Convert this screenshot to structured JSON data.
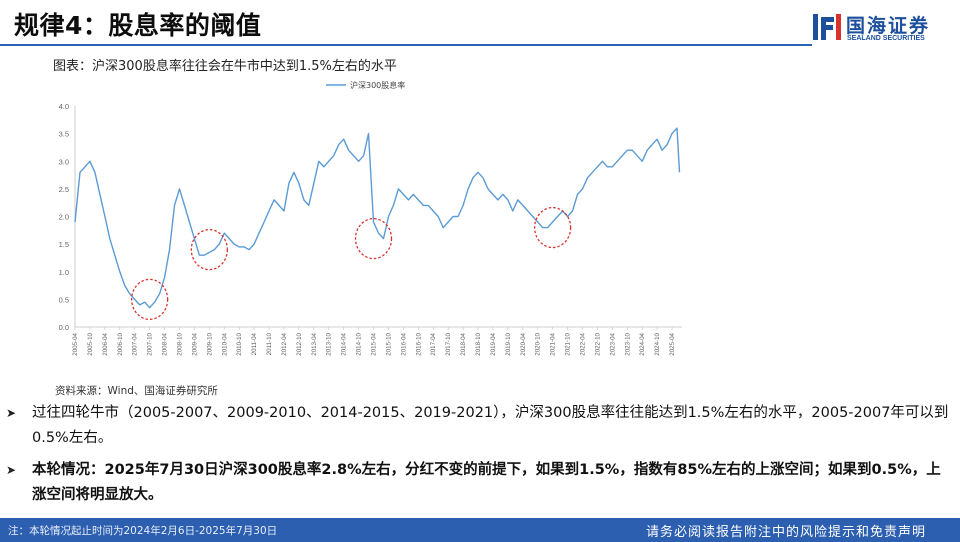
{
  "slide": {
    "title": "规律4：股息率的阈值",
    "caption": "图表：沪深300股息率往往会在牛市中达到1.5%左右的水平",
    "source": "资料来源：Wind、国海证券研究所",
    "bullets": [
      "过往四轮牛市（2005-2007、2009-2010、2014-2015、2019-2021），沪深300股息率往往能达到1.5%左右的水平，2005-2007年可以到0.5%左右。",
      "本轮情况：2025年7月30日沪深300股息率2.8%左右，分红不变的前提下，如果到1.5%，指数有85%左右的上涨空间；如果到0.5%，上涨空间将明显放大。"
    ],
    "footer_left": "注：本轮情况起止时间为2024年2月6日-2025年7月30日",
    "footer_right": "请务必阅读报告附注中的风险提示和免责声明"
  },
  "logo": {
    "cn": "国海证券",
    "en": "SEALAND SECURITIES"
  },
  "icons": {
    "bullet": "arrow-right-icon",
    "logo": "sealand-logo-icon"
  },
  "colors": {
    "line": "#5b9bd5",
    "accent": "#2c5fb0",
    "circle": "#d9322e",
    "title_rule": "#2a62b5"
  },
  "chart_data": {
    "type": "line",
    "title": "",
    "xlabel": "",
    "ylabel": "",
    "ylim": [
      0,
      4
    ],
    "yticks": [
      "0.0",
      "0.5",
      "1.0",
      "1.5",
      "2.0",
      "2.5",
      "3.0",
      "3.5",
      "4.0"
    ],
    "legend": {
      "position": "top-center"
    },
    "grid": false,
    "xticks": [
      "2005-04",
      "2005-10",
      "2006-04",
      "2006-10",
      "2007-04",
      "2007-10",
      "2008-04",
      "2008-10",
      "2009-04",
      "2009-10",
      "2010-04",
      "2010-10",
      "2011-04",
      "2011-10",
      "2012-04",
      "2012-10",
      "2013-04",
      "2013-10",
      "2014-04",
      "2014-10",
      "2015-04",
      "2015-10",
      "2016-04",
      "2016-10",
      "2017-04",
      "2017-10",
      "2018-04",
      "2018-10",
      "2019-04",
      "2019-10",
      "2020-04",
      "2020-10",
      "2021-04",
      "2021-10",
      "2022-04",
      "2022-10",
      "2023-04",
      "2023-10",
      "2024-04",
      "2024-10",
      "2025-04"
    ],
    "series": [
      {
        "name": "沪深300股息率",
        "x": [
          "2005-04",
          "2005-06",
          "2005-08",
          "2005-10",
          "2005-12",
          "2006-02",
          "2006-04",
          "2006-06",
          "2006-08",
          "2006-10",
          "2006-12",
          "2007-02",
          "2007-04",
          "2007-06",
          "2007-08",
          "2007-10",
          "2007-12",
          "2008-02",
          "2008-04",
          "2008-06",
          "2008-08",
          "2008-10",
          "2008-12",
          "2009-02",
          "2009-04",
          "2009-06",
          "2009-08",
          "2009-10",
          "2009-12",
          "2010-02",
          "2010-04",
          "2010-06",
          "2010-08",
          "2010-10",
          "2010-12",
          "2011-02",
          "2011-04",
          "2011-06",
          "2011-08",
          "2011-10",
          "2011-12",
          "2012-02",
          "2012-04",
          "2012-06",
          "2012-08",
          "2012-10",
          "2012-12",
          "2013-02",
          "2013-04",
          "2013-06",
          "2013-08",
          "2013-10",
          "2013-12",
          "2014-02",
          "2014-04",
          "2014-06",
          "2014-08",
          "2014-10",
          "2014-12",
          "2015-02",
          "2015-04",
          "2015-06",
          "2015-08",
          "2015-10",
          "2015-12",
          "2016-02",
          "2016-04",
          "2016-06",
          "2016-08",
          "2016-10",
          "2016-12",
          "2017-02",
          "2017-04",
          "2017-06",
          "2017-08",
          "2017-10",
          "2017-12",
          "2018-02",
          "2018-04",
          "2018-06",
          "2018-08",
          "2018-10",
          "2018-12",
          "2019-02",
          "2019-04",
          "2019-06",
          "2019-08",
          "2019-10",
          "2019-12",
          "2020-02",
          "2020-04",
          "2020-06",
          "2020-08",
          "2020-10",
          "2020-12",
          "2021-02",
          "2021-04",
          "2021-06",
          "2021-08",
          "2021-10",
          "2021-12",
          "2022-02",
          "2022-04",
          "2022-06",
          "2022-08",
          "2022-10",
          "2022-12",
          "2023-02",
          "2023-04",
          "2023-06",
          "2023-08",
          "2023-10",
          "2023-12",
          "2024-02",
          "2024-04",
          "2024-06",
          "2024-08",
          "2024-10",
          "2024-12",
          "2025-02",
          "2025-04",
          "2025-06",
          "2025-07"
        ],
        "values": [
          1.9,
          2.8,
          2.9,
          3.0,
          2.8,
          2.4,
          2.0,
          1.6,
          1.3,
          1.0,
          0.75,
          0.6,
          0.5,
          0.4,
          0.45,
          0.35,
          0.45,
          0.6,
          0.9,
          1.4,
          2.2,
          2.5,
          2.2,
          1.9,
          1.6,
          1.3,
          1.3,
          1.35,
          1.4,
          1.5,
          1.7,
          1.6,
          1.5,
          1.45,
          1.45,
          1.4,
          1.5,
          1.7,
          1.9,
          2.1,
          2.3,
          2.2,
          2.1,
          2.6,
          2.8,
          2.6,
          2.3,
          2.2,
          2.6,
          3.0,
          2.9,
          3.0,
          3.1,
          3.3,
          3.4,
          3.2,
          3.1,
          3.0,
          3.1,
          3.5,
          1.9,
          1.7,
          1.6,
          2.0,
          2.2,
          2.5,
          2.4,
          2.3,
          2.4,
          2.3,
          2.2,
          2.2,
          2.1,
          2.0,
          1.8,
          1.9,
          2.0,
          2.0,
          2.2,
          2.5,
          2.7,
          2.8,
          2.7,
          2.5,
          2.4,
          2.3,
          2.4,
          2.3,
          2.1,
          2.3,
          2.2,
          2.1,
          2.0,
          1.9,
          1.8,
          1.8,
          1.9,
          2.0,
          2.1,
          2.0,
          2.1,
          2.4,
          2.5,
          2.7,
          2.8,
          2.9,
          3.0,
          2.9,
          2.9,
          3.0,
          3.1,
          3.2,
          3.2,
          3.1,
          3.0,
          3.2,
          3.3,
          3.4,
          3.2,
          3.3,
          3.5,
          3.6,
          2.8
        ]
      }
    ],
    "annotations": [
      {
        "type": "circle",
        "x": "2007-10",
        "y": 0.5
      },
      {
        "type": "circle",
        "x": "2009-10",
        "y": 1.4
      },
      {
        "type": "circle",
        "x": "2015-04",
        "y": 1.6
      },
      {
        "type": "circle",
        "x": "2021-04",
        "y": 1.8
      }
    ]
  }
}
